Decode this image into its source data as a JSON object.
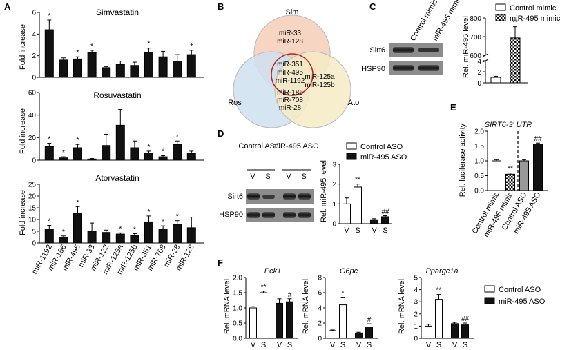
{
  "panels": {
    "A": {
      "label": "A",
      "ylabel": "Fold increase",
      "categories": [
        "miR-1192",
        "miR-186",
        "miR-495",
        "miR-33",
        "miR-122",
        "miR-125a",
        "miR-125b",
        "miR-351",
        "miR-708",
        "miR-28",
        "miR-128"
      ],
      "charts": [
        {
          "title": "Simvastatin",
          "ylim": [
            0,
            6
          ],
          "yticks": [
            "0",
            "2",
            "4",
            "6"
          ],
          "values": [
            4.4,
            1.6,
            1.7,
            2.3,
            0.9,
            1.2,
            1.1,
            2.3,
            1.9,
            1.5,
            2.1
          ],
          "errors": [
            0.9,
            0.2,
            0.2,
            0.2,
            0.1,
            0.3,
            0.3,
            0.4,
            0.5,
            0.6,
            0.4
          ],
          "sig": [
            "*",
            "",
            "*",
            "*",
            "",
            "",
            "",
            "*",
            "",
            "",
            "*"
          ]
        },
        {
          "title": "Rosuvastatin",
          "ylim": [
            0,
            60
          ],
          "yticks": [
            "0",
            "20",
            "40",
            "60"
          ],
          "values": [
            12,
            2,
            11,
            1,
            13,
            31,
            11,
            6,
            3,
            14,
            6
          ],
          "errors": [
            3,
            1,
            3,
            0.5,
            10,
            14,
            6,
            2,
            1,
            3,
            2
          ],
          "sig": [
            "*",
            "*",
            "*",
            "",
            "",
            "",
            "",
            "*",
            "*",
            "*",
            ""
          ]
        },
        {
          "title": "Atorvastatin",
          "ylim": [
            0,
            25
          ],
          "yticks": [
            "0",
            "5",
            "10",
            "15",
            "20",
            "25"
          ],
          "values": [
            6,
            2.5,
            12.5,
            5,
            4.5,
            3.8,
            3.2,
            9,
            5.8,
            8,
            6.5
          ],
          "errors": [
            1.5,
            0.5,
            3,
            3.5,
            1,
            0.5,
            0.8,
            2.5,
            1.5,
            1.5,
            4.5
          ],
          "sig": [
            "*",
            "*",
            "*",
            "",
            "",
            "*",
            "*",
            "*",
            "*",
            "*",
            ""
          ]
        }
      ]
    },
    "B": {
      "label": "B",
      "sets": [
        "Sim",
        "Ros",
        "Ato"
      ],
      "sim_only": [
        "miR-33",
        "miR-128"
      ],
      "center": [
        "miR-351",
        "miR-495",
        "miR-1192"
      ],
      "ato_sim": [
        "miR-125a",
        "miR-125b"
      ],
      "ros_ato": [
        "miR-186",
        "miR-708",
        "miR-28"
      ]
    },
    "C": {
      "label": "C",
      "lanes": [
        "Control mimic",
        "miR-495 mimic"
      ],
      "rows": [
        "Sirt6",
        "HSP90"
      ],
      "chart": {
        "ylabel": "Rel. miR-495 level",
        "yticks": [
          "0",
          "2",
          "4",
          "600",
          "700",
          "800"
        ],
        "legend": [
          "Control mimic",
          "miR-495 mimic"
        ],
        "values": [
          1.0,
          693
        ],
        "errors": [
          0.2,
          60
        ],
        "sig": [
          "",
          "**"
        ]
      }
    },
    "D": {
      "label": "D",
      "groups": [
        "Control ASO",
        "miR-495 ASO"
      ],
      "lanes": [
        "V",
        "S",
        "V",
        "S"
      ],
      "rows": [
        "Sirt6",
        "HSP90"
      ],
      "chart": {
        "ylabel": "Rel. miR-495 level",
        "ylim": [
          0,
          3
        ],
        "yticks": [
          "0",
          "1",
          "2",
          "3"
        ],
        "legend": [
          "Control ASO",
          "miR-495 ASO"
        ],
        "xticks": [
          "V",
          "S",
          "V",
          "S"
        ],
        "values": [
          1.0,
          1.85,
          0.2,
          0.35
        ],
        "errors": [
          0.3,
          0.15,
          0.05,
          0.05
        ],
        "sig": [
          "",
          "**",
          "",
          "##"
        ]
      }
    },
    "E": {
      "label": "E",
      "title": "SIRT6-3' UTR",
      "ylabel": "Rel. luciferase activity",
      "ylim": [
        0,
        2
      ],
      "yticks": [
        "0.0",
        "0.5",
        "1.0",
        "1.5",
        "2.0"
      ],
      "categories": [
        "Control mimic",
        "miR-495 mimic",
        "Control ASO",
        "miR-495 ASO"
      ],
      "values": [
        1.0,
        0.55,
        1.0,
        1.57
      ],
      "errors": [
        0.04,
        0.04,
        0.04,
        0.03
      ],
      "sig": [
        "",
        "**",
        "",
        "##"
      ]
    },
    "F": {
      "label": "F",
      "ylabel": "Rel. mRNA level",
      "xticks": [
        "V",
        "S",
        "V",
        "S"
      ],
      "legend": [
        "Control ASO",
        "miR-495 ASO"
      ],
      "charts": [
        {
          "title": "Pck1",
          "ylim": [
            0,
            2
          ],
          "yticks": [
            "0.0",
            "0.5",
            "1.0",
            "1.5",
            "2.0"
          ],
          "values": [
            1.0,
            1.5,
            1.15,
            1.2
          ],
          "errors": [
            0.04,
            0.05,
            0.15,
            0.1
          ],
          "sig": [
            "",
            "**",
            "",
            "#"
          ]
        },
        {
          "title": "G6pc",
          "ylim": [
            0,
            8
          ],
          "yticks": [
            "0",
            "2",
            "4",
            "6",
            "8"
          ],
          "values": [
            1.0,
            4.4,
            0.7,
            1.5
          ],
          "errors": [
            0.1,
            1.0,
            0.1,
            0.4
          ],
          "sig": [
            "",
            "*",
            "",
            "#"
          ]
        },
        {
          "title": "Ppargc1a",
          "ylim": [
            0,
            5
          ],
          "yticks": [
            "0",
            "1",
            "2",
            "3",
            "4",
            "5"
          ],
          "values": [
            1.0,
            3.2,
            1.2,
            1.1
          ],
          "errors": [
            0.15,
            0.4,
            0.1,
            0.15
          ],
          "sig": [
            "",
            "**",
            "",
            "##"
          ]
        }
      ]
    }
  },
  "colors": {
    "bar_black": "#111111",
    "bar_white": "#ffffff",
    "bar_grey": "#999999",
    "venn_sim": "#f6d5c3",
    "venn_ros": "#cfe0f0",
    "venn_ato": "#f6ebc4",
    "venn_center_ring": "#b5201f",
    "blot_band": "#1a1a1a",
    "blot_bg": "#8c8c8c"
  }
}
